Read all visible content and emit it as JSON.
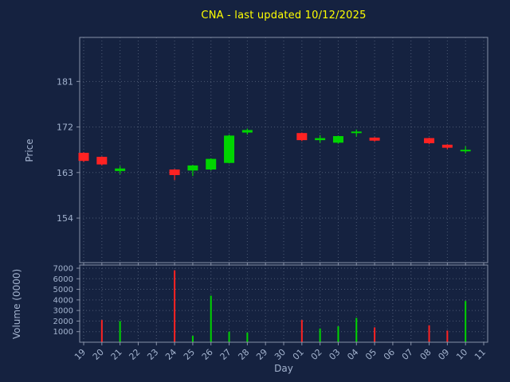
{
  "title": {
    "text": "CNA - last updated 10/12/2025"
  },
  "axes": {
    "price_label": "Price",
    "volume_label": "Volume (0000)",
    "x_label": "Day"
  },
  "colors": {
    "background": "#152240",
    "text": "#a3b3ce",
    "title": "#ffff00",
    "grid": "#5a6780",
    "spine": "#8892a8",
    "up": "#00d400",
    "down": "#ff2222"
  },
  "chart_data": {
    "type": "candlestick",
    "title": "CNA - last updated 10/12/2025",
    "xlabel": "Day",
    "ylabel": "Price",
    "ylabel2": "Volume (0000)",
    "legend": "none",
    "grid": true,
    "x_ticks": [
      "19",
      "20",
      "21",
      "22",
      "23",
      "24",
      "25",
      "26",
      "27",
      "28",
      "29",
      "30",
      "01",
      "02",
      "03",
      "04",
      "05",
      "06",
      "07",
      "08",
      "09",
      "10",
      "11"
    ],
    "price_ticks": [
      154,
      163,
      172,
      181
    ],
    "price_range": [
      145.2,
      189.7
    ],
    "volume_ticks": [
      1000,
      2000,
      3000,
      4000,
      5000,
      6000,
      7000
    ],
    "volume_range": [
      0,
      7300
    ],
    "candles": [
      {
        "day": "19",
        "open": 166.9,
        "high": 167.0,
        "low": 165.1,
        "close": 165.3
      },
      {
        "day": "20",
        "open": 166.1,
        "high": 166.2,
        "low": 164.4,
        "close": 164.6
      },
      {
        "day": "21",
        "open": 163.3,
        "high": 164.3,
        "low": 162.7,
        "close": 163.8
      },
      {
        "day": "24",
        "open": 163.6,
        "high": 163.7,
        "low": 161.5,
        "close": 162.5
      },
      {
        "day": "25",
        "open": 163.4,
        "high": 164.5,
        "low": 162.3,
        "close": 164.4
      },
      {
        "day": "26",
        "open": 163.6,
        "high": 165.8,
        "low": 163.4,
        "close": 165.7
      },
      {
        "day": "27",
        "open": 164.9,
        "high": 170.5,
        "low": 164.8,
        "close": 170.3
      },
      {
        "day": "28",
        "open": 170.9,
        "high": 171.7,
        "low": 170.5,
        "close": 171.4
      },
      {
        "day": "01",
        "open": 170.8,
        "high": 170.9,
        "low": 169.2,
        "close": 169.4
      },
      {
        "day": "02",
        "open": 169.4,
        "high": 170.4,
        "low": 168.9,
        "close": 169.8
      },
      {
        "day": "03",
        "open": 168.9,
        "high": 170.3,
        "low": 168.7,
        "close": 170.2
      },
      {
        "day": "04",
        "open": 170.9,
        "high": 171.5,
        "low": 170.1,
        "close": 171.1
      },
      {
        "day": "05",
        "open": 169.9,
        "high": 170.0,
        "low": 169.1,
        "close": 169.3
      },
      {
        "day": "08",
        "open": 169.8,
        "high": 169.9,
        "low": 168.6,
        "close": 168.8
      },
      {
        "day": "09",
        "open": 168.5,
        "high": 168.6,
        "low": 167.6,
        "close": 167.9
      },
      {
        "day": "10",
        "open": 167.4,
        "high": 168.2,
        "low": 166.8,
        "close": 167.5
      }
    ],
    "volumes": [
      {
        "day": "20",
        "value": 2100
      },
      {
        "day": "21",
        "value": 2000
      },
      {
        "day": "24",
        "value": 6800
      },
      {
        "day": "25",
        "value": 600
      },
      {
        "day": "26",
        "value": 4400
      },
      {
        "day": "27",
        "value": 1000
      },
      {
        "day": "28",
        "value": 900
      },
      {
        "day": "01",
        "value": 2100
      },
      {
        "day": "02",
        "value": 1300
      },
      {
        "day": "03",
        "value": 1500
      },
      {
        "day": "04",
        "value": 2300
      },
      {
        "day": "05",
        "value": 1400
      },
      {
        "day": "08",
        "value": 1600
      },
      {
        "day": "09",
        "value": 1100
      },
      {
        "day": "10",
        "value": 3900
      }
    ]
  }
}
